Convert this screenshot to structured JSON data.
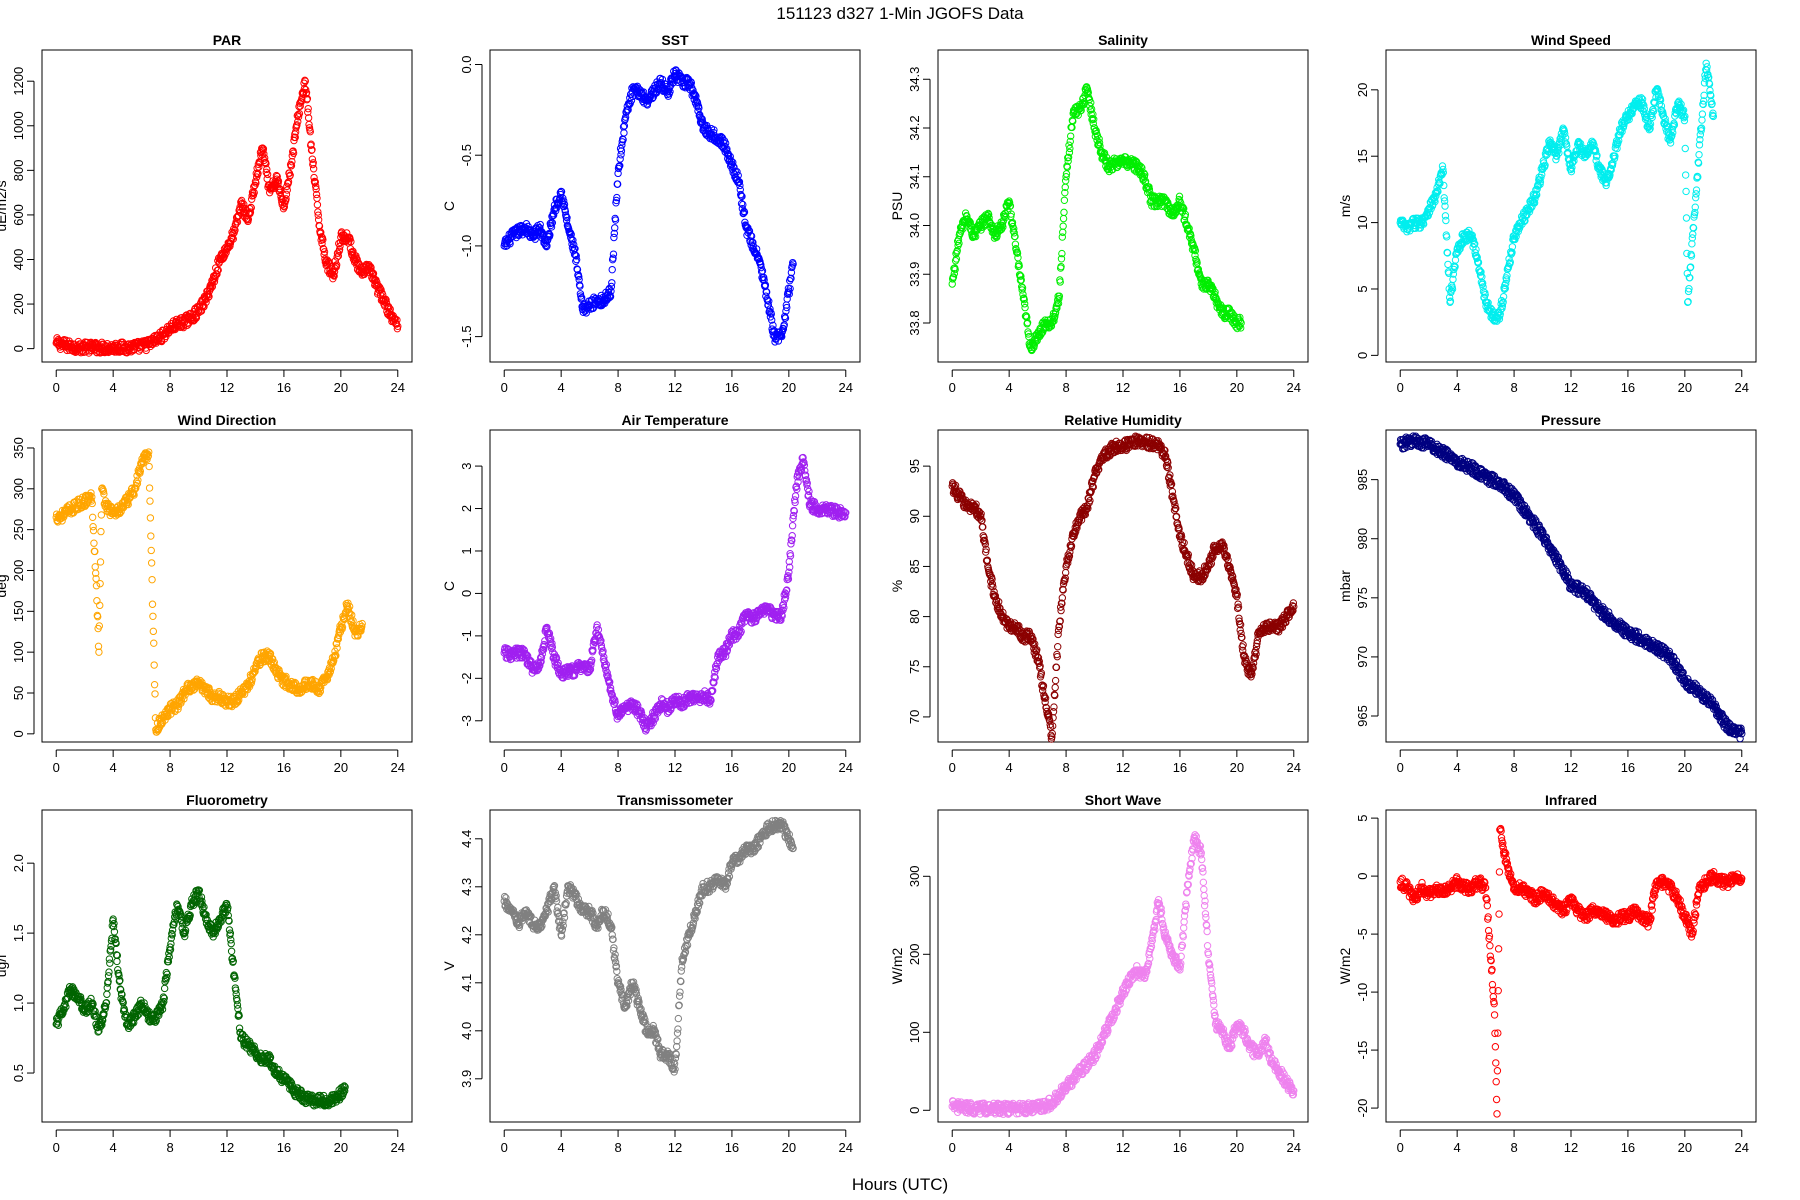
{
  "figure": {
    "title": "151123    d327    1-Min  JGOFS Data",
    "xlabel": "Hours (UTC)"
  },
  "chart_data": [
    {
      "type": "scatter",
      "title": "PAR",
      "ylabel": "uE/m2/s",
      "color": "#ff0000",
      "xlim": [
        -1,
        25
      ],
      "ylim": [
        -60,
        1340
      ],
      "xticks": [
        0,
        4,
        8,
        12,
        16,
        20,
        24
      ],
      "yticks": [
        0,
        200,
        400,
        600,
        800,
        1000,
        1200
      ],
      "x": [
        0,
        1,
        2,
        3,
        4,
        5,
        6,
        6.5,
        7,
        7.5,
        8,
        8.5,
        9,
        9.5,
        10,
        10.5,
        11,
        11.5,
        12,
        12.5,
        13,
        13.5,
        14,
        14.5,
        15,
        15.5,
        16,
        16.5,
        17,
        17.5,
        18,
        18.5,
        19,
        19.5,
        20,
        20.5,
        21,
        21.5,
        22,
        22.5,
        23,
        23.5,
        24
      ],
      "y": [
        25,
        10,
        5,
        5,
        5,
        5,
        10,
        20,
        40,
        60,
        90,
        110,
        120,
        140,
        170,
        220,
        300,
        400,
        450,
        520,
        650,
        580,
        750,
        900,
        700,
        760,
        640,
        820,
        1050,
        1200,
        850,
        550,
        380,
        330,
        500,
        500,
        400,
        330,
        370,
        280,
        220,
        150,
        100
      ]
    },
    {
      "type": "scatter",
      "title": "SST",
      "ylabel": "C",
      "color": "#0000ff",
      "xlim": [
        -1,
        25
      ],
      "ylim": [
        -1.64,
        0.08
      ],
      "xticks": [
        0,
        4,
        8,
        12,
        16,
        20,
        24
      ],
      "yticks": [
        -1.5,
        -1.0,
        -0.5,
        0.0
      ],
      "ytick_labels": [
        "-1.5",
        "-1.0",
        "-0.5",
        "0.0"
      ],
      "x": [
        0,
        0.5,
        1,
        1.5,
        2,
        2.5,
        3,
        3.5,
        4,
        4.5,
        5,
        5.5,
        6,
        6.5,
        7,
        7.5,
        8,
        8.5,
        9,
        9.5,
        10,
        10.5,
        11,
        11.5,
        12,
        12.5,
        13,
        13.5,
        14,
        14.5,
        15,
        15.5,
        16,
        16.5,
        17,
        17.5,
        18,
        18.5,
        19,
        19.5,
        20,
        20.3
      ],
      "y": [
        -1.0,
        -0.95,
        -0.92,
        -0.9,
        -0.95,
        -0.9,
        -1.0,
        -0.8,
        -0.7,
        -0.9,
        -1.05,
        -1.35,
        -1.33,
        -1.3,
        -1.3,
        -1.25,
        -0.6,
        -0.3,
        -0.15,
        -0.15,
        -0.2,
        -0.15,
        -0.1,
        -0.15,
        -0.05,
        -0.1,
        -0.1,
        -0.2,
        -0.35,
        -0.38,
        -0.4,
        -0.45,
        -0.55,
        -0.65,
        -0.9,
        -1.0,
        -1.1,
        -1.3,
        -1.5,
        -1.5,
        -1.25,
        -1.1
      ]
    },
    {
      "type": "scatter",
      "title": "Salinity",
      "ylabel": "PSU",
      "color": "#00ee00",
      "xlim": [
        -1,
        25
      ],
      "ylim": [
        33.72,
        34.36
      ],
      "xticks": [
        0,
        4,
        8,
        12,
        16,
        20,
        24
      ],
      "yticks": [
        33.8,
        33.9,
        34.0,
        34.1,
        34.2,
        34.3
      ],
      "ytick_labels": [
        "33.8",
        "33.9",
        "34.0",
        "34.1",
        "34.2",
        "34.3"
      ],
      "x": [
        0,
        0.5,
        1,
        1.5,
        2,
        2.5,
        3,
        3.5,
        4,
        4.5,
        5,
        5.5,
        6,
        6.5,
        7,
        7.5,
        8,
        8.5,
        9,
        9.5,
        10,
        10.5,
        11,
        11.5,
        12,
        12.5,
        13,
        13.5,
        14,
        14.5,
        15,
        15.5,
        16,
        16.5,
        17,
        17.5,
        18,
        18.5,
        19,
        19.5,
        20,
        20.3
      ],
      "y": [
        33.88,
        33.98,
        34.02,
        33.98,
        34.0,
        34.02,
        33.98,
        34.0,
        34.05,
        33.95,
        33.85,
        33.75,
        33.77,
        33.8,
        33.8,
        33.85,
        34.1,
        34.23,
        34.24,
        34.28,
        34.2,
        34.15,
        34.12,
        34.13,
        34.13,
        34.13,
        34.12,
        34.1,
        34.05,
        34.05,
        34.05,
        34.02,
        34.05,
        34.0,
        33.95,
        33.88,
        33.88,
        33.85,
        33.82,
        33.82,
        33.8,
        33.8
      ]
    },
    {
      "type": "scatter",
      "title": "Wind Speed",
      "ylabel": "m/s",
      "color": "#00eeee",
      "xlim": [
        -1,
        25
      ],
      "ylim": [
        -0.5,
        23
      ],
      "xticks": [
        0,
        4,
        8,
        12,
        16,
        20,
        24
      ],
      "yticks": [
        0,
        5,
        10,
        15,
        20
      ],
      "x": [
        0,
        0.5,
        1,
        1.5,
        2,
        2.5,
        3,
        3.5,
        4,
        4.5,
        5,
        5.5,
        6,
        6.5,
        7,
        7.5,
        8,
        8.5,
        9,
        9.5,
        10,
        10.5,
        11,
        11.5,
        12,
        12.5,
        13,
        13.5,
        14,
        14.5,
        15,
        15.5,
        16,
        16.5,
        17,
        17.5,
        18,
        18.5,
        19,
        19.5,
        20,
        20.2,
        21.5,
        22
      ],
      "y": [
        10,
        9.5,
        10,
        10,
        11,
        12,
        14,
        4,
        8,
        9,
        9,
        7,
        4,
        3,
        3,
        6,
        9,
        10,
        11,
        12,
        14,
        16,
        15,
        17,
        14,
        16,
        15,
        16,
        14,
        13,
        15,
        17,
        18,
        19,
        19,
        17,
        20,
        18,
        16,
        19,
        18,
        4,
        22,
        18
      ]
    },
    {
      "type": "scatter",
      "title": "Wind Direction",
      "ylabel": "deg",
      "color": "#ffa500",
      "xlim": [
        -1,
        25
      ],
      "ylim": [
        -10,
        372
      ],
      "xticks": [
        0,
        4,
        8,
        12,
        16,
        20,
        24
      ],
      "yticks": [
        0,
        50,
        100,
        150,
        200,
        250,
        300,
        350
      ],
      "x": [
        0,
        0.5,
        1,
        1.5,
        2,
        2.5,
        2.8,
        3,
        3.2,
        3.5,
        4,
        4.5,
        5,
        5.5,
        6,
        6.5,
        7,
        7.5,
        8,
        8.5,
        9,
        9.5,
        10,
        10.5,
        11,
        11.5,
        12,
        12.5,
        13,
        13.5,
        14,
        14.5,
        15,
        15.5,
        16,
        16.5,
        17,
        17.5,
        18,
        18.5,
        19,
        19.5,
        20,
        20.5,
        21,
        21.5
      ],
      "y": [
        265,
        268,
        275,
        280,
        285,
        290,
        190,
        100,
        300,
        280,
        270,
        275,
        285,
        300,
        330,
        345,
        5,
        20,
        30,
        35,
        50,
        60,
        60,
        55,
        45,
        45,
        40,
        40,
        50,
        60,
        80,
        95,
        95,
        75,
        65,
        60,
        55,
        60,
        60,
        55,
        70,
        90,
        130,
        160,
        120,
        135
      ]
    },
    {
      "type": "scatter",
      "title": "Air Temperature",
      "ylabel": "C",
      "color": "#a020f0",
      "xlim": [
        -1,
        25
      ],
      "ylim": [
        -3.5,
        3.85
      ],
      "xticks": [
        0,
        4,
        8,
        12,
        16,
        20,
        24
      ],
      "yticks": [
        -3,
        -2,
        -1,
        0,
        1,
        2,
        3
      ],
      "x": [
        0,
        0.5,
        1,
        1.5,
        2,
        2.5,
        3,
        3.5,
        4,
        4.5,
        5,
        5.5,
        6,
        6.5,
        7,
        7.5,
        8,
        8.5,
        9,
        9.5,
        10,
        10.5,
        11,
        11.5,
        12,
        12.5,
        13,
        13.5,
        14,
        14.5,
        15,
        15.5,
        16,
        16.5,
        17,
        17.5,
        18,
        18.5,
        19,
        19.5,
        20,
        20.5,
        21,
        21.5,
        22,
        22.5,
        23,
        23.5,
        24
      ],
      "y": [
        -1.4,
        -1.45,
        -1.4,
        -1.45,
        -1.8,
        -1.7,
        -0.8,
        -1.5,
        -1.9,
        -1.85,
        -1.8,
        -1.7,
        -1.8,
        -0.8,
        -1.5,
        -2.3,
        -2.9,
        -2.7,
        -2.6,
        -2.8,
        -3.2,
        -2.9,
        -2.6,
        -2.7,
        -2.5,
        -2.6,
        -2.45,
        -2.5,
        -2.4,
        -2.5,
        -1.5,
        -1.4,
        -1.0,
        -0.9,
        -0.5,
        -0.6,
        -0.4,
        -0.4,
        -0.5,
        -0.5,
        0.5,
        2.5,
        3.2,
        2.1,
        2.0,
        2.0,
        1.95,
        1.9,
        1.9
      ]
    },
    {
      "type": "scatter",
      "title": "Relative Humidity",
      "ylabel": "%",
      "color": "#8b0000",
      "xlim": [
        -1,
        25
      ],
      "ylim": [
        67.5,
        98.6
      ],
      "xticks": [
        0,
        4,
        8,
        12,
        16,
        20,
        24
      ],
      "yticks": [
        70,
        75,
        80,
        85,
        90,
        95
      ],
      "x": [
        0,
        0.5,
        1,
        1.5,
        2,
        2.5,
        3,
        3.5,
        4,
        4.5,
        5,
        5.5,
        6,
        6.5,
        7,
        7.5,
        8,
        8.5,
        9,
        9.5,
        10,
        10.5,
        11,
        11.5,
        12,
        12.5,
        13,
        13.5,
        14,
        14.5,
        15,
        15.5,
        16,
        16.5,
        17,
        17.5,
        18,
        18.5,
        19,
        19.5,
        20,
        20.5,
        21,
        21.5,
        22,
        22.5,
        23,
        23.5,
        24
      ],
      "y": [
        93,
        92,
        91,
        91,
        90,
        85,
        82,
        80,
        79,
        79,
        78,
        78,
        76,
        72,
        68,
        79,
        85,
        88,
        90,
        91,
        94,
        96,
        96.5,
        97,
        97,
        97.2,
        97.5,
        97.5,
        97.2,
        97,
        96,
        92,
        88,
        86,
        84,
        84,
        85,
        87,
        87,
        85,
        82,
        76,
        74,
        78,
        79,
        79,
        79,
        80,
        81
      ]
    },
    {
      "type": "scatter",
      "title": "Pressure",
      "ylabel": "mbar",
      "color": "#000080",
      "xlim": [
        -1,
        25
      ],
      "ylim": [
        962.8,
        989.2
      ],
      "xticks": [
        0,
        4,
        8,
        12,
        16,
        20,
        24
      ],
      "yticks": [
        965,
        970,
        975,
        980,
        985
      ],
      "x": [
        0,
        1,
        2,
        3,
        4,
        5,
        6,
        7,
        8,
        9,
        10,
        11,
        12,
        13,
        14,
        15,
        16,
        17,
        18,
        19,
        20,
        21,
        22,
        23,
        24
      ],
      "y": [
        988,
        988.3,
        988,
        987.3,
        986.5,
        986,
        985.2,
        984.7,
        983.6,
        982,
        980.3,
        978.3,
        976,
        975.5,
        974,
        973,
        972,
        971.5,
        970.8,
        970,
        968,
        967,
        966,
        964,
        963.5
      ]
    },
    {
      "type": "scatter",
      "title": "Fluorometry",
      "ylabel": "ug/l",
      "color": "#006400",
      "xlim": [
        -1,
        25
      ],
      "ylim": [
        0.15,
        2.38
      ],
      "xticks": [
        0,
        4,
        8,
        12,
        16,
        20,
        24
      ],
      "yticks": [
        0.5,
        1.0,
        1.5,
        2.0
      ],
      "ytick_labels": [
        "0.5",
        "1.0",
        "1.5",
        "2.0"
      ],
      "x": [
        0,
        0.5,
        1,
        1.5,
        2,
        2.5,
        3,
        3.5,
        4,
        4.5,
        5,
        5.5,
        6,
        6.5,
        7,
        7.5,
        8,
        8.5,
        9,
        9.5,
        10,
        10.5,
        11,
        11.5,
        12,
        12.5,
        13,
        13.5,
        14,
        14.5,
        15,
        15.5,
        16,
        16.5,
        17,
        17.5,
        18,
        18.5,
        19,
        19.5,
        20,
        20.3
      ],
      "y": [
        0.85,
        0.95,
        1.1,
        1.05,
        0.95,
        1.0,
        0.8,
        1.0,
        1.6,
        1.1,
        0.85,
        0.9,
        1.0,
        0.9,
        0.9,
        1.0,
        1.4,
        1.7,
        1.5,
        1.7,
        1.8,
        1.6,
        1.5,
        1.6,
        1.7,
        1.2,
        0.75,
        0.7,
        0.65,
        0.6,
        0.6,
        0.5,
        0.45,
        0.4,
        0.35,
        0.32,
        0.3,
        0.3,
        0.3,
        0.32,
        0.35,
        0.4
      ]
    },
    {
      "type": "scatter",
      "title": "Transmissometer",
      "ylabel": "V",
      "color": "#808080",
      "xlim": [
        -1,
        25
      ],
      "ylim": [
        3.81,
        4.46
      ],
      "xticks": [
        0,
        4,
        8,
        12,
        16,
        20,
        24
      ],
      "yticks": [
        3.9,
        4.0,
        4.1,
        4.2,
        4.3,
        4.4
      ],
      "ytick_labels": [
        "3.9",
        "4.0",
        "4.1",
        "4.2",
        "4.3",
        "4.4"
      ],
      "x": [
        0,
        0.5,
        1,
        1.5,
        2,
        2.5,
        3,
        3.5,
        4,
        4.5,
        5,
        5.5,
        6,
        6.5,
        7,
        7.5,
        8,
        8.5,
        9,
        9.5,
        10,
        10.5,
        11,
        11.5,
        12,
        12.5,
        13,
        13.5,
        14,
        14.5,
        15,
        15.5,
        16,
        16.5,
        17,
        17.5,
        18,
        18.5,
        19,
        19.5,
        20,
        20.3
      ],
      "y": [
        4.27,
        4.25,
        4.22,
        4.25,
        4.22,
        4.22,
        4.25,
        4.3,
        4.2,
        4.3,
        4.28,
        4.25,
        4.25,
        4.22,
        4.25,
        4.22,
        4.1,
        4.05,
        4.1,
        4.05,
        4.0,
        4.0,
        3.95,
        3.95,
        3.92,
        4.15,
        4.2,
        4.25,
        4.3,
        4.3,
        4.32,
        4.3,
        4.35,
        4.36,
        4.38,
        4.38,
        4.4,
        4.42,
        4.43,
        4.43,
        4.4,
        4.38
      ]
    },
    {
      "type": "scatter",
      "title": "Short Wave",
      "ylabel": "W/m2",
      "color": "#ee82ee",
      "xlim": [
        -1,
        25
      ],
      "ylim": [
        -15,
        385
      ],
      "xticks": [
        0,
        4,
        8,
        12,
        16,
        20,
        24
      ],
      "yticks": [
        0,
        100,
        200,
        300
      ],
      "x": [
        0,
        1,
        2,
        3,
        4,
        5,
        6,
        6.5,
        7,
        7.5,
        8,
        8.5,
        9,
        9.5,
        10,
        10.5,
        11,
        11.5,
        12,
        12.5,
        13,
        13.5,
        14,
        14.5,
        15,
        15.5,
        16,
        16.5,
        17,
        17.5,
        18,
        18.5,
        19,
        19.5,
        20,
        20.5,
        21,
        21.5,
        22,
        22.5,
        23,
        23.5,
        24
      ],
      "y": [
        5,
        3,
        2,
        2,
        2,
        2,
        3,
        5,
        10,
        20,
        30,
        40,
        50,
        60,
        70,
        90,
        110,
        130,
        150,
        170,
        180,
        170,
        210,
        270,
        220,
        200,
        180,
        280,
        350,
        330,
        200,
        110,
        100,
        80,
        110,
        100,
        80,
        70,
        90,
        60,
        50,
        35,
        25
      ]
    },
    {
      "type": "scatter",
      "title": "Infrared",
      "ylabel": "W/m2",
      "color": "#ff0000",
      "xlim": [
        -1,
        25
      ],
      "ylim": [
        -21.2,
        5.7
      ],
      "xticks": [
        0,
        4,
        8,
        12,
        16,
        20,
        24
      ],
      "yticks": [
        -20,
        -15,
        -10,
        -5,
        0,
        5
      ],
      "x": [
        0,
        0.5,
        1,
        1.5,
        2,
        2.5,
        3,
        3.5,
        4,
        4.5,
        5,
        5.5,
        6,
        6.3,
        6.6,
        6.8,
        7,
        7.5,
        8,
        8.5,
        9,
        9.5,
        10,
        10.5,
        11,
        11.5,
        12,
        12.5,
        13,
        13.5,
        14,
        14.5,
        15,
        15.5,
        16,
        16.5,
        17,
        17.5,
        18,
        18.5,
        19,
        19.5,
        20,
        20.5,
        21,
        21.5,
        22,
        22.5,
        23,
        23.5,
        24
      ],
      "y": [
        -0.5,
        -1,
        -2,
        -1,
        -1.5,
        -1,
        -1.5,
        -1,
        -0.5,
        -1,
        -1,
        -0.5,
        -1,
        -6,
        -11,
        -20.5,
        4,
        1,
        -1,
        -1,
        -1.5,
        -2,
        -1.5,
        -2,
        -2.5,
        -3,
        -2,
        -3,
        -3.5,
        -3,
        -3,
        -3.5,
        -4,
        -3.5,
        -3.5,
        -3,
        -3.5,
        -4,
        -0.5,
        -0.5,
        -1,
        -2,
        -3.5,
        -5,
        -1,
        -0.5,
        0,
        -0.5,
        -0.5,
        -0.3,
        -0.2
      ]
    }
  ]
}
